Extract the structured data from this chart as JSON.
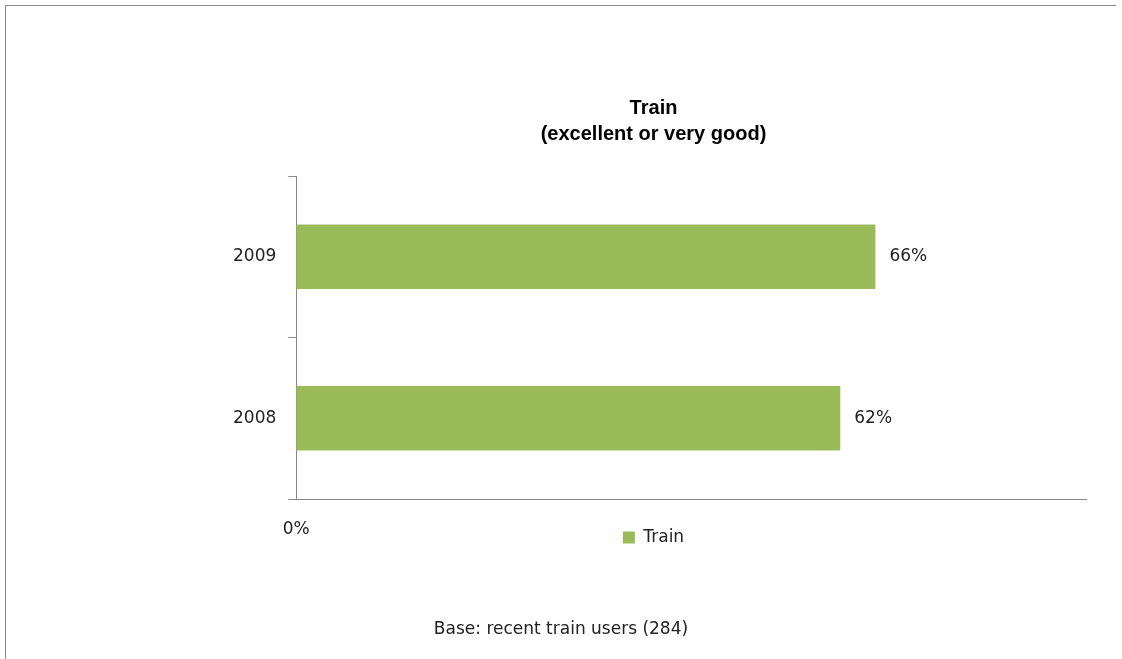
{
  "chart_data": {
    "type": "bar",
    "orientation": "horizontal",
    "title": "Train",
    "subtitle": "(excellent or very good)",
    "categories": [
      "2009",
      "2008"
    ],
    "series": [
      {
        "name": "Train",
        "color": "#9bbb59",
        "values": [
          66,
          62
        ],
        "value_labels": [
          "66%",
          "62%"
        ]
      }
    ],
    "tick_labels": "y",
    "grid": false,
    "legend": "bottom",
    "annotations": [
      "0%",
      "Base: recent train users (284)"
    ]
  }
}
